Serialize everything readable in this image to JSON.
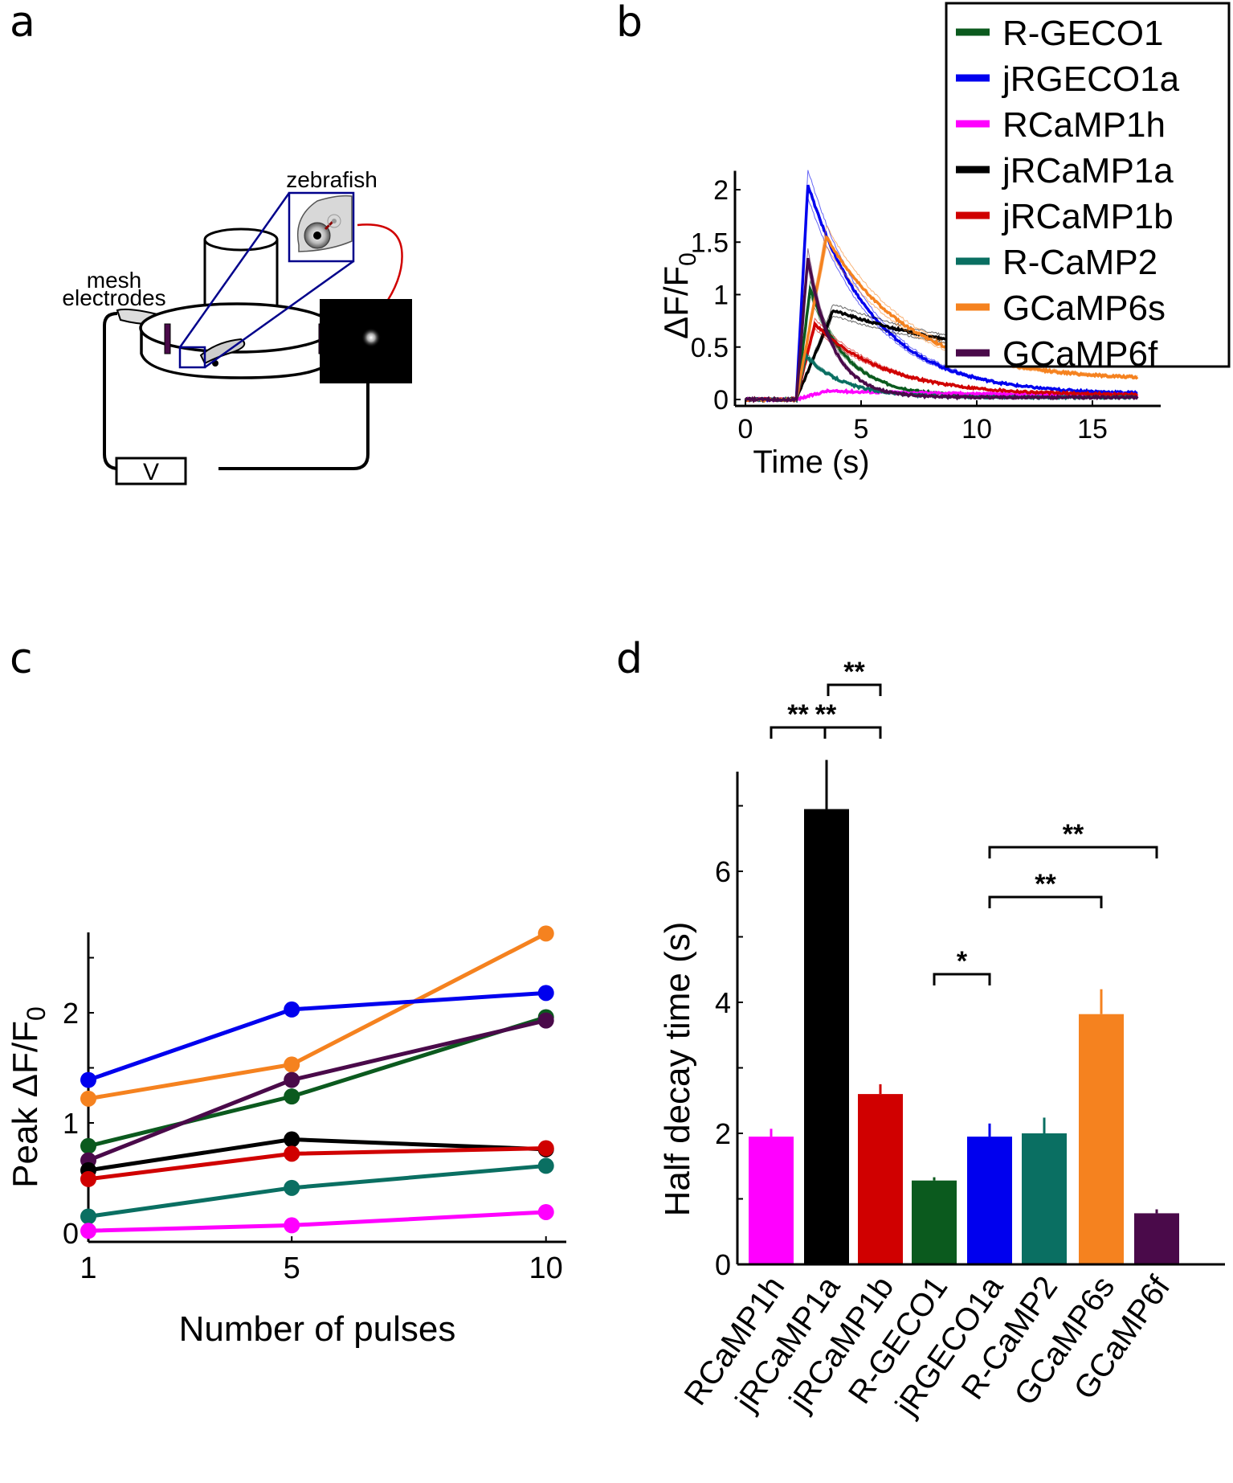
{
  "panels": {
    "a": {
      "letter": "a",
      "labels": {
        "zebrafish": "zebrafish",
        "mesh": "mesh",
        "electrodes": "electrodes",
        "voltage": "V"
      }
    },
    "b": {
      "letter": "b"
    },
    "c": {
      "letter": "c"
    },
    "d": {
      "letter": "d"
    }
  },
  "colors": {
    "R-GECO1": "#0b5a1e",
    "jRGECO1a": "#0000ee",
    "RCaMP1h": "#ff00ff",
    "jRCaMP1a": "#000000",
    "jRCaMP1b": "#d00000",
    "R-CaMP2": "#0a6f62",
    "GCaMP6s": "#f5821f",
    "GCaMP6f": "#4a0a4a"
  },
  "chart_data": [
    {
      "id": "b",
      "type": "line",
      "title": "",
      "xlabel": "Time (s)",
      "ylabel": "ΔF/F0",
      "ylabel_main": "ΔF/F",
      "ylabel_sub": "0",
      "xlim": [
        -0.5,
        18
      ],
      "ylim": [
        -0.05,
        2.2
      ],
      "xticks": [
        0,
        5,
        10,
        15
      ],
      "yticks": [
        0,
        0.5,
        1,
        1.5,
        2
      ],
      "ytick_labels": [
        "0",
        "0.5",
        "1",
        "1.5",
        "2"
      ],
      "legend_position": "top-right",
      "legend": [
        "R-GECO1",
        "jRGECO1a",
        "RCaMP1h",
        "jRCaMP1a",
        "jRCaMP1b",
        "R-CaMP2",
        "GCaMP6s",
        "GCaMP6f"
      ],
      "stimulus_onset_s": 2.2,
      "series": [
        {
          "name": "R-GECO1",
          "peak": 1.05,
          "t_peak": 2.8,
          "tau": 1.6,
          "end": 0.03
        },
        {
          "name": "jRGECO1a",
          "peak": 2.05,
          "t_peak": 2.7,
          "tau": 3.0,
          "end": 0.05
        },
        {
          "name": "RCaMP1h",
          "peak": 0.08,
          "t_peak": 3.5,
          "tau": 12.0,
          "end": 0.03
        },
        {
          "name": "jRCaMP1a",
          "peak": 0.85,
          "t_peak": 3.8,
          "tau": 9.0,
          "end": 0.25
        },
        {
          "name": "jRCaMP1b",
          "peak": 0.72,
          "t_peak": 3.0,
          "tau": 3.2,
          "end": 0.04
        },
        {
          "name": "R-CaMP2",
          "peak": 0.42,
          "t_peak": 2.6,
          "tau": 1.7,
          "end": 0.02
        },
        {
          "name": "GCaMP6s",
          "peak": 1.55,
          "t_peak": 3.5,
          "tau": 3.8,
          "end": 0.18
        },
        {
          "name": "GCaMP6f",
          "peak": 1.35,
          "t_peak": 2.7,
          "tau": 1.1,
          "end": 0.02
        }
      ]
    },
    {
      "id": "c",
      "type": "line",
      "title": "",
      "xlabel": "Number of pulses",
      "ylabel": "Peak ΔF/F0",
      "ylabel_main": "Peak ΔF/F",
      "ylabel_sub": "0",
      "x": [
        1,
        5,
        10
      ],
      "xlim": [
        1,
        11.2
      ],
      "ylim": [
        -0.05,
        2.65
      ],
      "xticks": [
        1,
        5,
        10
      ],
      "yticks": [
        0,
        0.5,
        1,
        1.5,
        2,
        2.5
      ],
      "ytick_labels": [
        "0",
        "",
        "1",
        "",
        "2",
        ""
      ],
      "series": [
        {
          "name": "GCaMP6s",
          "values": [
            1.22,
            1.53,
            2.72
          ]
        },
        {
          "name": "jRGECO1a",
          "values": [
            1.39,
            2.03,
            2.18
          ]
        },
        {
          "name": "R-GECO1",
          "values": [
            0.79,
            1.24,
            1.96
          ]
        },
        {
          "name": "GCaMP6f",
          "values": [
            0.66,
            1.39,
            1.93
          ]
        },
        {
          "name": "jRCaMP1a",
          "values": [
            0.57,
            0.85,
            0.76
          ]
        },
        {
          "name": "jRCaMP1b",
          "values": [
            0.49,
            0.72,
            0.77
          ]
        },
        {
          "name": "R-CaMP2",
          "values": [
            0.15,
            0.41,
            0.61
          ]
        },
        {
          "name": "RCaMP1h",
          "values": [
            0.02,
            0.07,
            0.19
          ]
        }
      ]
    },
    {
      "id": "d",
      "type": "bar",
      "title": "",
      "xlabel": "",
      "ylabel": "Half decay time (s)",
      "categories": [
        "RCaMP1h",
        "jRCaMP1a",
        "jRCaMP1b",
        "R-GECO1",
        "jRGECO1a",
        "R-CaMP2",
        "GCaMP6s",
        "GCaMP6f"
      ],
      "values": [
        1.95,
        6.95,
        2.6,
        1.28,
        1.95,
        2.0,
        3.82,
        0.78
      ],
      "errors": [
        0.12,
        0.75,
        0.15,
        0.05,
        0.2,
        0.24,
        0.38,
        0.06
      ],
      "ylim": [
        0,
        7.5
      ],
      "yticks": [
        0,
        1,
        2,
        3,
        4,
        5,
        6,
        7
      ],
      "ytick_labels": [
        "0",
        "",
        "2",
        "",
        "4",
        "",
        "6",
        ""
      ],
      "significance": [
        {
          "from": "RCaMP1h",
          "to": "jRCaMP1a",
          "label": "**"
        },
        {
          "from": "jRCaMP1a",
          "to": "jRCaMP1b",
          "label": "**"
        },
        {
          "from": "RCaMP1h",
          "to": "jRCaMP1b",
          "label": "**"
        },
        {
          "from": "R-GECO1",
          "to": "jRGECO1a",
          "label": "*"
        },
        {
          "from": "jRGECO1a",
          "to": "GCaMP6s",
          "label": "**"
        },
        {
          "from": "jRGECO1a",
          "to": "GCaMP6f",
          "label": "**"
        }
      ]
    }
  ]
}
